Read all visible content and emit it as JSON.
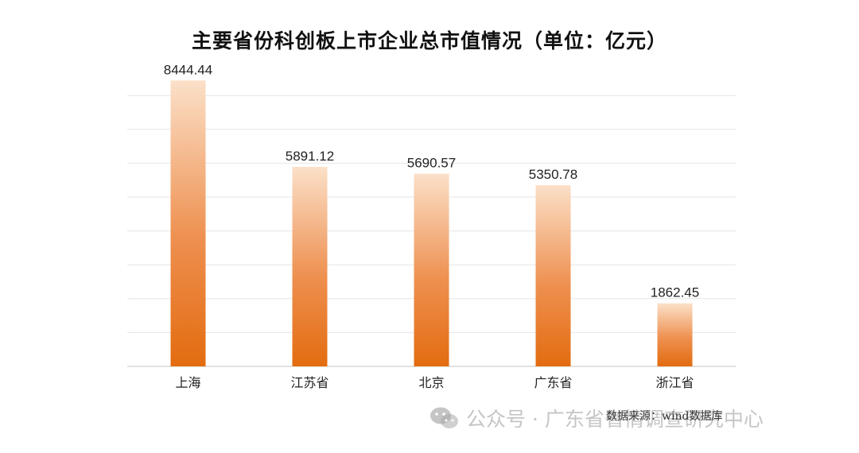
{
  "chart_data": {
    "type": "bar",
    "title": "主要省份科创板上市企业总市值情况（单位：亿元）",
    "categories": [
      "上海",
      "江苏省",
      "北京",
      "广东省",
      "浙江省"
    ],
    "values": [
      8444.44,
      5891.12,
      5690.57,
      5350.78,
      1862.45
    ],
    "value_labels": [
      "8444.44",
      "5891.12",
      "5690.57",
      "5350.78",
      "1862.45"
    ],
    "ylim": [
      0,
      8000
    ],
    "y_gridline_step": 1000,
    "grid": true,
    "legend": "none",
    "colors": {
      "bar_top": "#fbe0c8",
      "bar_bottom": "#e36c10",
      "grid": "#e6e6e6",
      "axis": "#d0d0d0"
    }
  },
  "source_note": "数据来源：wind数据库",
  "watermark": {
    "icon": "wechat-icon",
    "text": "公众号 · 广东省省情调查研究中心"
  }
}
